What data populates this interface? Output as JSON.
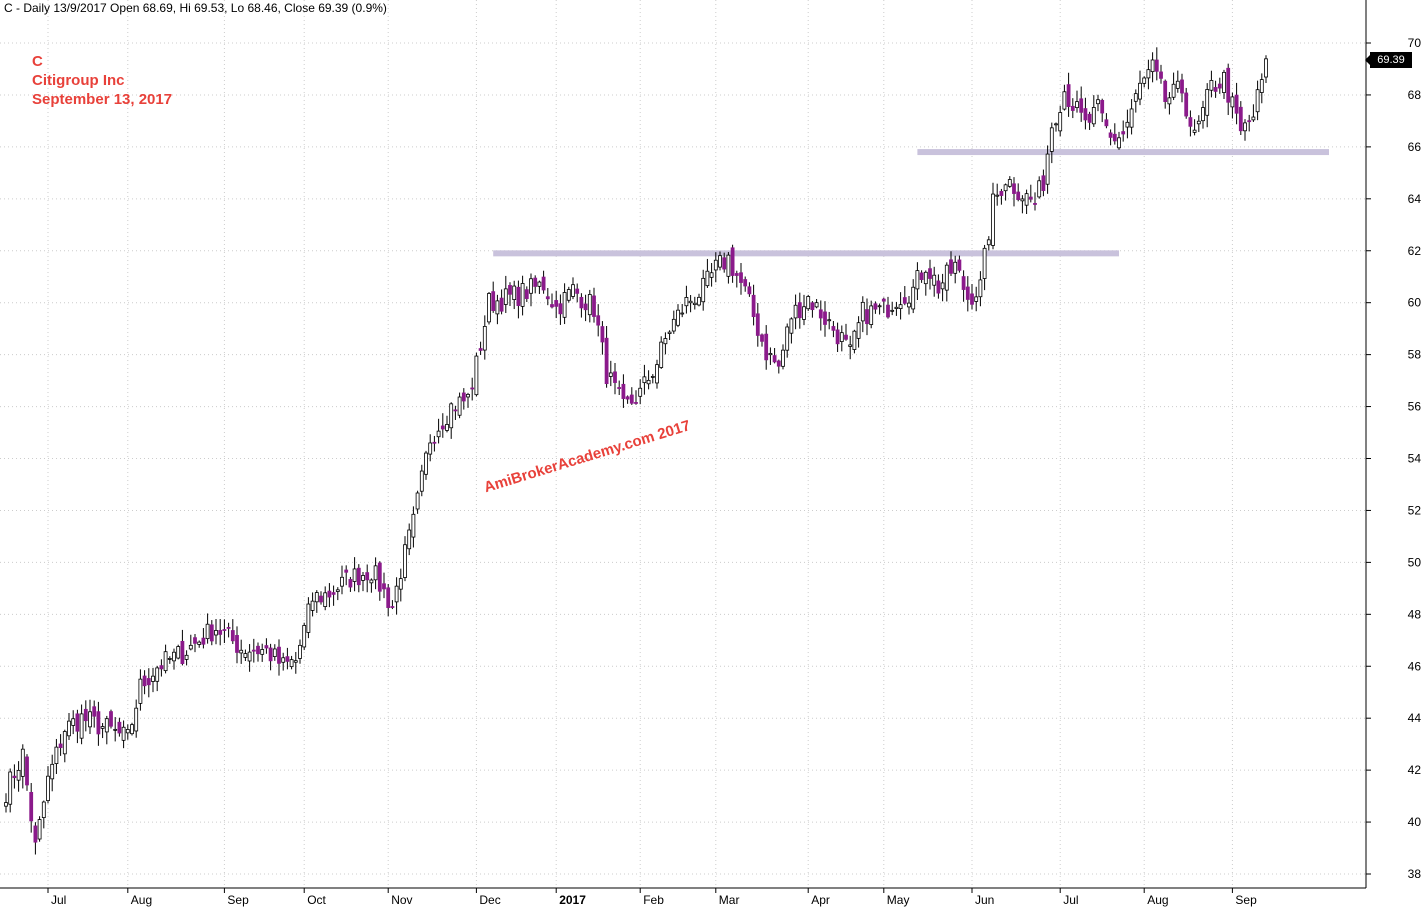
{
  "header": {
    "text": "C - Daily 13/9/2017 Open 68.69, Hi 69.53, Lo 68.46, Close 69.39 (0.9%)"
  },
  "title": {
    "symbol": "C",
    "company": "Citigroup Inc",
    "date": "September 13, 2017"
  },
  "watermark": "AmiBrokerAcademy.com  2017",
  "last_price_label": "69.39",
  "colors": {
    "up": "#ffffff",
    "down": "#8b1a8b",
    "wick": "#000000",
    "grid": "#cccccc",
    "annotation": "#e8413a",
    "resistance": "#c9c2dc"
  },
  "chart_data": {
    "type": "candlestick",
    "ylim": [
      37.6,
      70.6
    ],
    "y_ticks": [
      38,
      40,
      42,
      44,
      46,
      48,
      50,
      52,
      54,
      56,
      58,
      60,
      62,
      64,
      66,
      68,
      70
    ],
    "x_ticks": [
      {
        "label": "Jul",
        "idx": 10
      },
      {
        "label": "Aug",
        "idx": 29
      },
      {
        "label": "Sep",
        "idx": 52
      },
      {
        "label": "Oct",
        "idx": 71
      },
      {
        "label": "Nov",
        "idx": 91
      },
      {
        "label": "Dec",
        "idx": 112
      },
      {
        "label": "2017",
        "idx": 131
      },
      {
        "label": "Feb",
        "idx": 151
      },
      {
        "label": "Mar",
        "idx": 169
      },
      {
        "label": "Apr",
        "idx": 191
      },
      {
        "label": "May",
        "idx": 209
      },
      {
        "label": "Jun",
        "idx": 230
      },
      {
        "label": "Jul",
        "idx": 251
      },
      {
        "label": "Aug",
        "idx": 271
      },
      {
        "label": "Sep",
        "idx": 292
      }
    ],
    "support_resistance": [
      {
        "level": 61.9,
        "from_idx": 116,
        "to_idx": 265
      },
      {
        "level": 65.8,
        "from_idx": 217,
        "to_idx": 315
      }
    ],
    "anchors": [
      [
        0,
        41.2
      ],
      [
        4,
        42.6
      ],
      [
        7,
        39.0
      ],
      [
        10,
        41.6
      ],
      [
        14,
        43.6
      ],
      [
        18,
        44.0
      ],
      [
        24,
        43.6
      ],
      [
        29,
        43.2
      ],
      [
        32,
        45.2
      ],
      [
        36,
        46.0
      ],
      [
        42,
        46.5
      ],
      [
        50,
        47.5
      ],
      [
        56,
        46.7
      ],
      [
        62,
        46.6
      ],
      [
        66,
        46.0
      ],
      [
        69,
        46.2
      ],
      [
        73,
        48.6
      ],
      [
        77,
        48.8
      ],
      [
        82,
        49.4
      ],
      [
        87,
        49.7
      ],
      [
        92,
        48.3
      ],
      [
        94,
        49.7
      ],
      [
        97,
        51.5
      ],
      [
        101,
        54.8
      ],
      [
        106,
        56.0
      ],
      [
        110,
        56.3
      ],
      [
        112,
        57.6
      ],
      [
        115,
        60.0
      ],
      [
        120,
        60.2
      ],
      [
        125,
        60.5
      ],
      [
        128,
        60.7
      ],
      [
        131,
        59.8
      ],
      [
        135,
        60.5
      ],
      [
        140,
        59.8
      ],
      [
        143,
        57.3
      ],
      [
        147,
        55.9
      ],
      [
        151,
        56.5
      ],
      [
        155,
        57.7
      ],
      [
        158,
        59.0
      ],
      [
        162,
        60.0
      ],
      [
        166,
        60.5
      ],
      [
        169,
        61.3
      ],
      [
        172,
        61.7
      ],
      [
        176,
        60.4
      ],
      [
        181,
        58.1
      ],
      [
        184,
        57.5
      ],
      [
        187,
        59.5
      ],
      [
        191,
        60.2
      ],
      [
        195,
        59.4
      ],
      [
        199,
        58.6
      ],
      [
        201,
        58.0
      ],
      [
        204,
        59.6
      ],
      [
        209,
        59.7
      ],
      [
        212,
        60.2
      ],
      [
        216,
        60.5
      ],
      [
        219,
        61.5
      ],
      [
        222,
        60.6
      ],
      [
        226,
        61.4
      ],
      [
        229,
        60.2
      ],
      [
        232,
        60.6
      ],
      [
        235,
        63.8
      ],
      [
        238,
        64.8
      ],
      [
        242,
        64.2
      ],
      [
        245,
        63.8
      ],
      [
        247,
        64.7
      ],
      [
        249,
        66.9
      ],
      [
        252,
        68.2
      ],
      [
        257,
        66.8
      ],
      [
        260,
        67.4
      ],
      [
        263,
        66.3
      ],
      [
        266,
        66.5
      ],
      [
        270,
        68.3
      ],
      [
        273,
        69.0
      ],
      [
        276,
        67.8
      ],
      [
        280,
        68.2
      ],
      [
        283,
        66.3
      ],
      [
        287,
        68.3
      ],
      [
        290,
        68.6
      ],
      [
        294,
        66.5
      ],
      [
        297,
        67.2
      ],
      [
        300,
        69.2
      ]
    ]
  }
}
